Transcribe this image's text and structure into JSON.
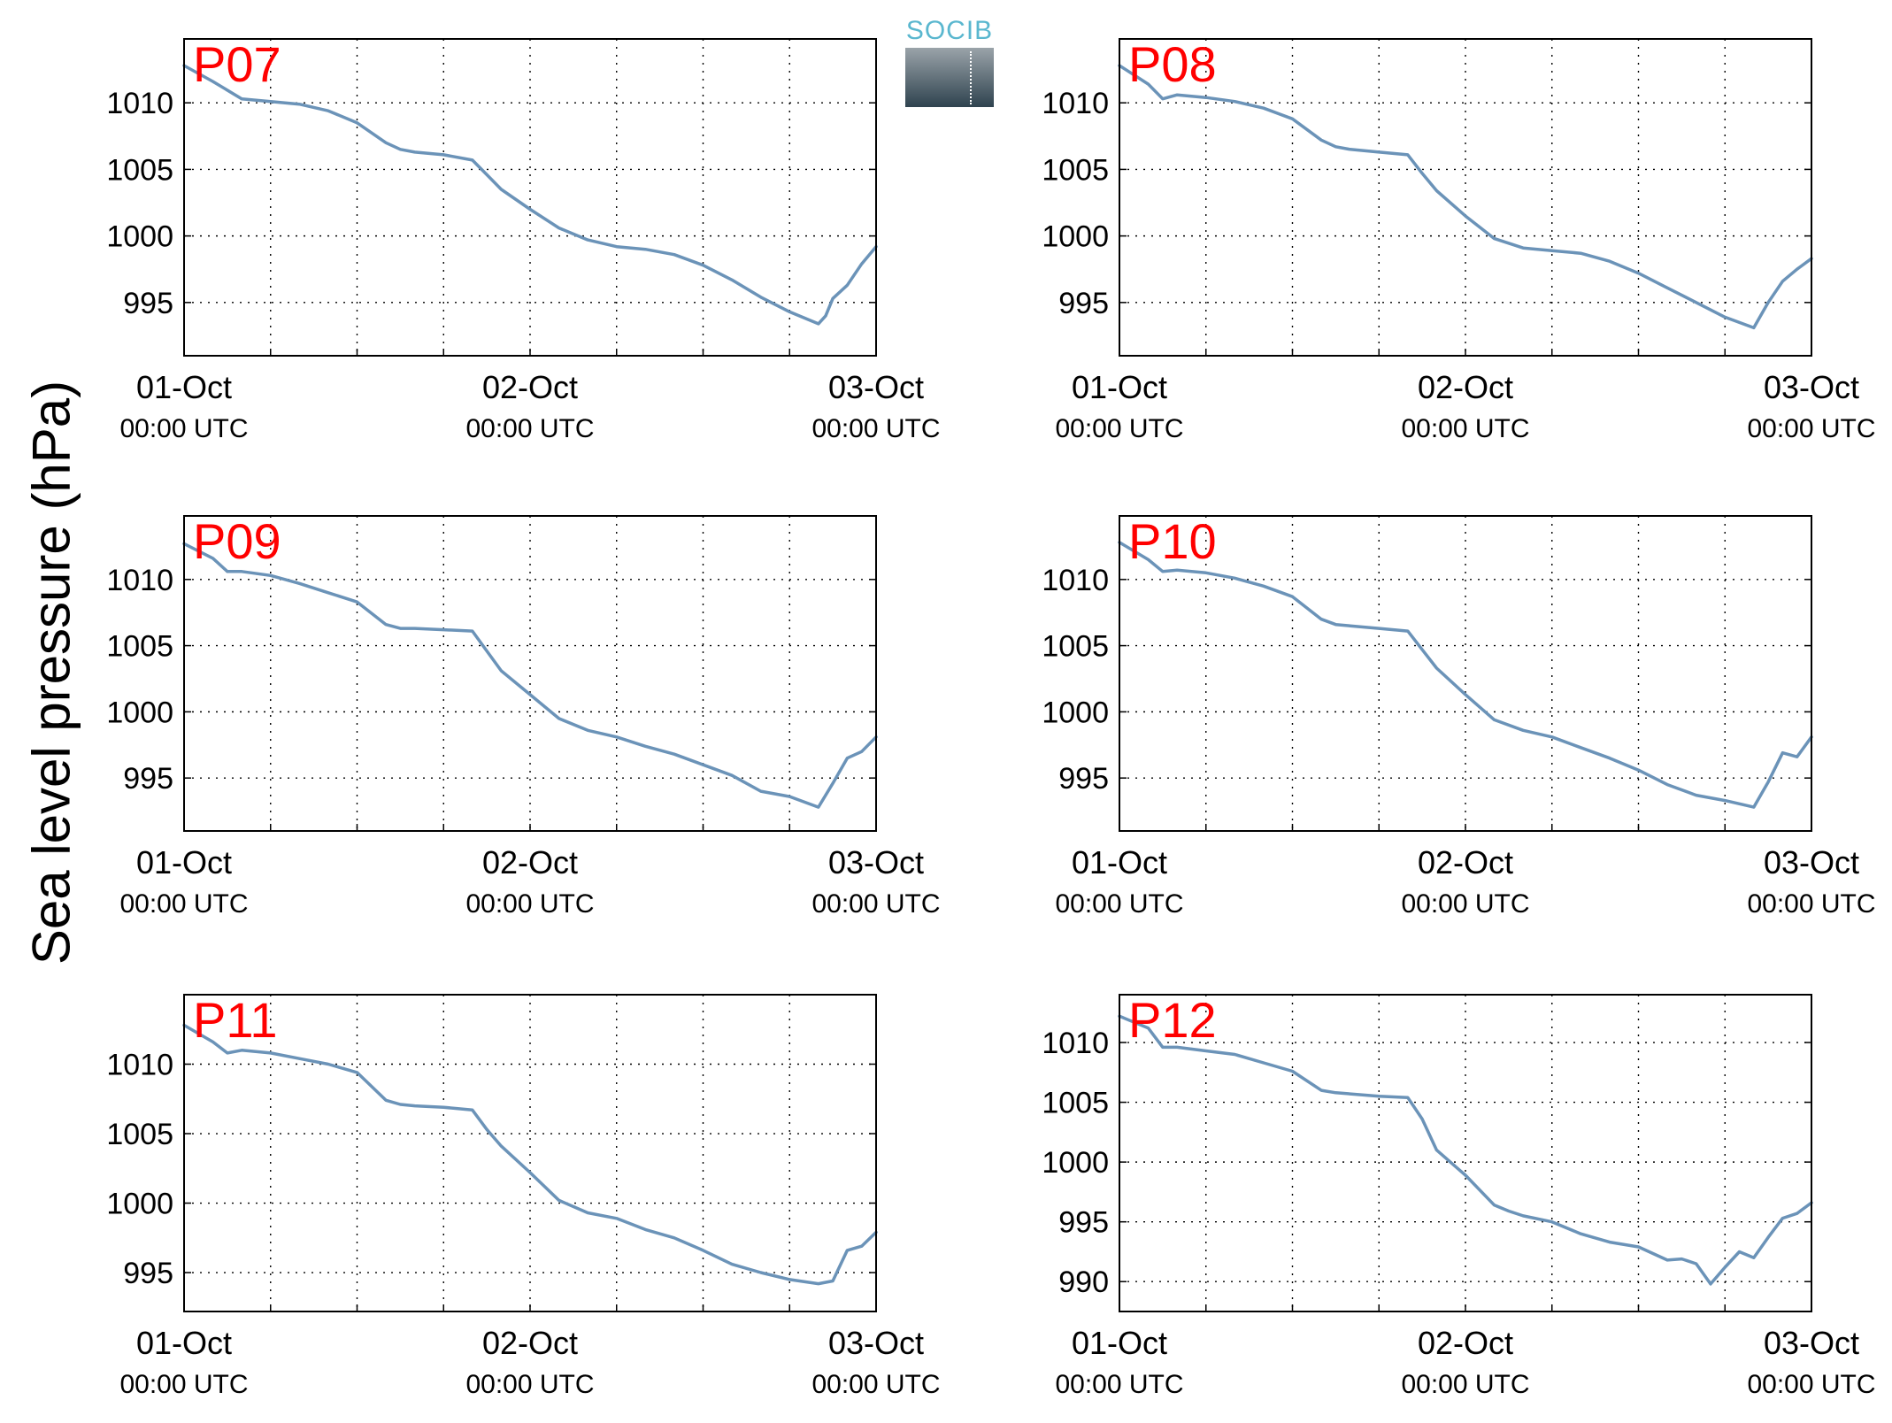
{
  "figure": {
    "ylabel": "Sea level pressure (hPa)",
    "logo_text": "SOCIB",
    "line_color": "#6b93b8",
    "label_color": "#ff0000"
  },
  "chart_data": [
    {
      "type": "line",
      "label": "P07",
      "x": [
        "2018-10-01T00:00",
        "2018-10-01T02:00",
        "2018-10-01T04:00",
        "2018-10-01T05:00",
        "2018-10-01T06:00",
        "2018-10-01T08:00",
        "2018-10-01T10:00",
        "2018-10-01T12:00",
        "2018-10-01T14:00",
        "2018-10-01T15:00",
        "2018-10-01T16:00",
        "2018-10-01T18:00",
        "2018-10-01T20:00",
        "2018-10-01T21:00",
        "2018-10-01T22:00",
        "2018-10-02T00:00",
        "2018-10-02T02:00",
        "2018-10-02T04:00",
        "2018-10-02T06:00",
        "2018-10-02T08:00",
        "2018-10-02T10:00",
        "2018-10-02T12:00",
        "2018-10-02T14:00",
        "2018-10-02T16:00",
        "2018-10-02T18:00",
        "2018-10-02T20:00",
        "2018-10-02T20:30",
        "2018-10-02T21:00",
        "2018-10-02T22:00",
        "2018-10-02T23:00",
        "2018-10-03T00:00"
      ],
      "values": [
        1012.8,
        1011.6,
        1010.3,
        1010.2,
        1010.1,
        1009.9,
        1009.4,
        1008.5,
        1007.0,
        1006.5,
        1006.3,
        1006.1,
        1005.7,
        1004.6,
        1003.5,
        1002.0,
        1000.6,
        999.7,
        999.2,
        999.0,
        998.6,
        997.8,
        996.7,
        995.4,
        994.3,
        993.4,
        994.0,
        995.3,
        996.3,
        997.9,
        999.2
      ],
      "yticks": [
        995,
        1000,
        1005,
        1010
      ],
      "ylim": [
        991,
        1014.8
      ],
      "xticks": [
        "01-Oct",
        "02-Oct",
        "03-Oct"
      ],
      "xsub": "00:00 UTC"
    },
    {
      "type": "line",
      "label": "P08",
      "x": [
        "2018-10-01T00:00",
        "2018-10-01T02:00",
        "2018-10-01T03:00",
        "2018-10-01T04:00",
        "2018-10-01T06:00",
        "2018-10-01T08:00",
        "2018-10-01T10:00",
        "2018-10-01T12:00",
        "2018-10-01T14:00",
        "2018-10-01T15:00",
        "2018-10-01T16:00",
        "2018-10-01T18:00",
        "2018-10-01T20:00",
        "2018-10-01T21:00",
        "2018-10-01T22:00",
        "2018-10-02T00:00",
        "2018-10-02T02:00",
        "2018-10-02T04:00",
        "2018-10-02T06:00",
        "2018-10-02T08:00",
        "2018-10-02T10:00",
        "2018-10-02T12:00",
        "2018-10-02T14:00",
        "2018-10-02T16:00",
        "2018-10-02T18:00",
        "2018-10-02T20:00",
        "2018-10-02T21:00",
        "2018-10-02T22:00",
        "2018-10-02T23:00",
        "2018-10-03T00:00"
      ],
      "values": [
        1012.8,
        1011.4,
        1010.3,
        1010.6,
        1010.4,
        1010.1,
        1009.6,
        1008.8,
        1007.2,
        1006.7,
        1006.5,
        1006.3,
        1006.1,
        1004.7,
        1003.4,
        1001.5,
        999.8,
        999.1,
        998.9,
        998.7,
        998.1,
        997.2,
        996.1,
        995.0,
        993.9,
        993.1,
        995.0,
        996.6,
        997.5,
        998.3
      ],
      "yticks": [
        995,
        1000,
        1005,
        1010
      ],
      "ylim": [
        991,
        1014.8
      ],
      "xticks": [
        "01-Oct",
        "02-Oct",
        "03-Oct"
      ],
      "xsub": "00:00 UTC"
    },
    {
      "type": "line",
      "label": "P09",
      "x": [
        "2018-10-01T00:00",
        "2018-10-01T02:00",
        "2018-10-01T03:00",
        "2018-10-01T04:00",
        "2018-10-01T06:00",
        "2018-10-01T08:00",
        "2018-10-01T10:00",
        "2018-10-01T12:00",
        "2018-10-01T14:00",
        "2018-10-01T15:00",
        "2018-10-01T16:00",
        "2018-10-01T18:00",
        "2018-10-01T20:00",
        "2018-10-01T21:00",
        "2018-10-01T22:00",
        "2018-10-02T00:00",
        "2018-10-02T02:00",
        "2018-10-02T04:00",
        "2018-10-02T06:00",
        "2018-10-02T08:00",
        "2018-10-02T10:00",
        "2018-10-02T12:00",
        "2018-10-02T14:00",
        "2018-10-02T16:00",
        "2018-10-02T18:00",
        "2018-10-02T20:00",
        "2018-10-02T21:00",
        "2018-10-02T22:00",
        "2018-10-02T23:00",
        "2018-10-03T00:00"
      ],
      "values": [
        1012.7,
        1011.6,
        1010.6,
        1010.6,
        1010.3,
        1009.7,
        1009.0,
        1008.3,
        1006.6,
        1006.3,
        1006.3,
        1006.2,
        1006.1,
        1004.6,
        1003.1,
        1001.3,
        999.5,
        998.6,
        998.1,
        997.4,
        996.8,
        996.0,
        995.2,
        994.0,
        993.6,
        992.8,
        994.6,
        996.5,
        997.0,
        998.1
      ],
      "yticks": [
        995,
        1000,
        1005,
        1010
      ],
      "ylim": [
        991,
        1014.8
      ],
      "xticks": [
        "01-Oct",
        "02-Oct",
        "03-Oct"
      ],
      "xsub": "00:00 UTC"
    },
    {
      "type": "line",
      "label": "P10",
      "x": [
        "2018-10-01T00:00",
        "2018-10-01T02:00",
        "2018-10-01T03:00",
        "2018-10-01T04:00",
        "2018-10-01T06:00",
        "2018-10-01T08:00",
        "2018-10-01T10:00",
        "2018-10-01T12:00",
        "2018-10-01T14:00",
        "2018-10-01T15:00",
        "2018-10-01T16:00",
        "2018-10-01T18:00",
        "2018-10-01T20:00",
        "2018-10-01T21:00",
        "2018-10-01T22:00",
        "2018-10-02T00:00",
        "2018-10-02T02:00",
        "2018-10-02T04:00",
        "2018-10-02T06:00",
        "2018-10-02T08:00",
        "2018-10-02T10:00",
        "2018-10-02T12:00",
        "2018-10-02T14:00",
        "2018-10-02T16:00",
        "2018-10-02T18:00",
        "2018-10-02T20:00",
        "2018-10-02T21:00",
        "2018-10-02T22:00",
        "2018-10-02T23:00",
        "2018-10-03T00:00"
      ],
      "values": [
        1012.8,
        1011.5,
        1010.6,
        1010.7,
        1010.5,
        1010.1,
        1009.5,
        1008.7,
        1007.0,
        1006.6,
        1006.5,
        1006.3,
        1006.1,
        1004.7,
        1003.3,
        1001.3,
        999.4,
        998.6,
        998.1,
        997.3,
        996.5,
        995.6,
        994.5,
        993.7,
        993.3,
        992.8,
        994.7,
        996.9,
        996.6,
        998.1
      ],
      "yticks": [
        995,
        1000,
        1005,
        1010
      ],
      "ylim": [
        991,
        1014.8
      ],
      "xticks": [
        "01-Oct",
        "02-Oct",
        "03-Oct"
      ],
      "xsub": "00:00 UTC"
    },
    {
      "type": "line",
      "label": "P11",
      "x": [
        "2018-10-01T00:00",
        "2018-10-01T02:00",
        "2018-10-01T03:00",
        "2018-10-01T04:00",
        "2018-10-01T06:00",
        "2018-10-01T08:00",
        "2018-10-01T10:00",
        "2018-10-01T12:00",
        "2018-10-01T14:00",
        "2018-10-01T15:00",
        "2018-10-01T16:00",
        "2018-10-01T18:00",
        "2018-10-01T20:00",
        "2018-10-01T21:00",
        "2018-10-01T22:00",
        "2018-10-02T00:00",
        "2018-10-02T02:00",
        "2018-10-02T04:00",
        "2018-10-02T06:00",
        "2018-10-02T08:00",
        "2018-10-02T10:00",
        "2018-10-02T12:00",
        "2018-10-02T14:00",
        "2018-10-02T16:00",
        "2018-10-02T18:00",
        "2018-10-02T20:00",
        "2018-10-02T21:00",
        "2018-10-02T22:00",
        "2018-10-02T23:00",
        "2018-10-03T00:00"
      ],
      "values": [
        1012.8,
        1011.6,
        1010.8,
        1011.0,
        1010.8,
        1010.4,
        1010.0,
        1009.4,
        1007.4,
        1007.1,
        1007.0,
        1006.9,
        1006.7,
        1005.3,
        1004.1,
        1002.2,
        1000.2,
        999.3,
        998.9,
        998.1,
        997.5,
        996.6,
        995.6,
        995.0,
        994.5,
        994.2,
        994.4,
        996.6,
        996.9,
        997.9
      ],
      "yticks": [
        995,
        1000,
        1005,
        1010
      ],
      "ylim": [
        992.2,
        1015
      ],
      "xticks": [
        "01-Oct",
        "02-Oct",
        "03-Oct"
      ],
      "xsub": "00:00 UTC"
    },
    {
      "type": "line",
      "label": "P12",
      "x": [
        "2018-10-01T00:00",
        "2018-10-01T02:00",
        "2018-10-01T03:00",
        "2018-10-01T04:00",
        "2018-10-01T06:00",
        "2018-10-01T08:00",
        "2018-10-01T10:00",
        "2018-10-01T12:00",
        "2018-10-01T14:00",
        "2018-10-01T15:00",
        "2018-10-01T16:00",
        "2018-10-01T18:00",
        "2018-10-01T20:00",
        "2018-10-01T21:00",
        "2018-10-01T22:00",
        "2018-10-02T00:00",
        "2018-10-02T02:00",
        "2018-10-02T03:00",
        "2018-10-02T04:00",
        "2018-10-02T06:00",
        "2018-10-02T08:00",
        "2018-10-02T10:00",
        "2018-10-02T12:00",
        "2018-10-02T14:00",
        "2018-10-02T15:00",
        "2018-10-02T16:00",
        "2018-10-02T17:00",
        "2018-10-02T18:00",
        "2018-10-02T19:00",
        "2018-10-02T20:00",
        "2018-10-02T21:00",
        "2018-10-02T22:00",
        "2018-10-02T23:00",
        "2018-10-03T00:00"
      ],
      "values": [
        1012.2,
        1011.2,
        1009.6,
        1009.6,
        1009.3,
        1009.0,
        1008.3,
        1007.6,
        1006.0,
        1005.8,
        1005.7,
        1005.5,
        1005.4,
        1003.6,
        1001.0,
        998.9,
        996.4,
        995.9,
        995.5,
        995.0,
        994.0,
        993.3,
        992.9,
        991.8,
        991.9,
        991.5,
        989.8,
        991.2,
        992.5,
        992.0,
        993.7,
        995.3,
        995.7,
        996.6
      ],
      "yticks": [
        990,
        995,
        1000,
        1005,
        1010
      ],
      "ylim": [
        987.5,
        1014
      ],
      "xticks": [
        "01-Oct",
        "02-Oct",
        "03-Oct"
      ],
      "xsub": "00:00 UTC"
    }
  ]
}
